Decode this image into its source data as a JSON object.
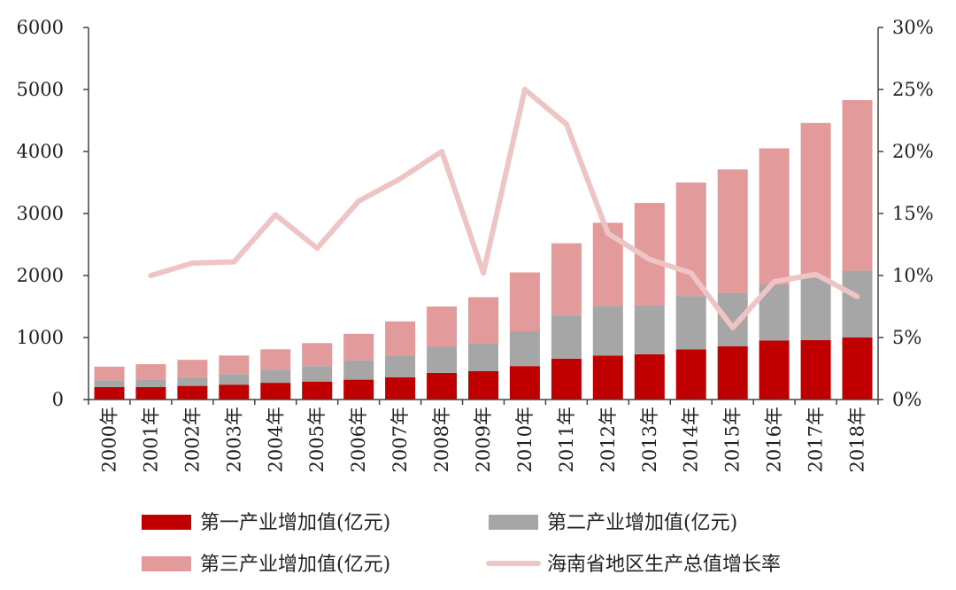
{
  "chart_data": {
    "type": "bar",
    "stacked": true,
    "categories": [
      "2000年",
      "2001年",
      "2002年",
      "2003年",
      "2004年",
      "2005年",
      "2006年",
      "2007年",
      "2008年",
      "2009年",
      "2010年",
      "2011年",
      "2012年",
      "2013年",
      "2014年",
      "2015年",
      "2016年",
      "2017年",
      "2018年"
    ],
    "series": [
      {
        "name": "第一产业增加值(亿元)",
        "kind": "bar",
        "color": "#c00000",
        "values": [
          200,
          200,
          220,
          240,
          270,
          290,
          320,
          360,
          430,
          460,
          540,
          660,
          710,
          730,
          810,
          860,
          950,
          960,
          1000
        ]
      },
      {
        "name": "第二产业增加值(亿元)",
        "kind": "bar",
        "color": "#a6a6a6",
        "values": [
          110,
          120,
          140,
          170,
          210,
          250,
          310,
          350,
          420,
          440,
          560,
          700,
          800,
          790,
          860,
          860,
          900,
          1000,
          1080
        ]
      },
      {
        "name": "第三产业增加值(亿元)",
        "kind": "bar",
        "color": "#e29a9a",
        "values": [
          220,
          250,
          280,
          300,
          330,
          370,
          430,
          550,
          650,
          750,
          950,
          1160,
          1340,
          1650,
          1830,
          1990,
          2200,
          2500,
          2750
        ]
      },
      {
        "name": "海南省地区生产总值增长率",
        "kind": "line",
        "axis": "right",
        "color": "#efc4c4",
        "values": [
          null,
          10.0,
          11.0,
          11.1,
          14.9,
          12.2,
          16.0,
          17.8,
          20.0,
          10.2,
          25.0,
          22.2,
          13.4,
          11.3,
          10.2,
          5.8,
          9.5,
          10.1,
          8.3
        ]
      }
    ],
    "left_axis": {
      "min": 0,
      "max": 6000,
      "ticks": [
        "0",
        "1000",
        "2000",
        "3000",
        "4000",
        "5000",
        "6000"
      ]
    },
    "right_axis": {
      "min": 0,
      "max": 30,
      "ticks": [
        "0%",
        "5%",
        "10%",
        "15%",
        "20%",
        "25%",
        "30%"
      ]
    },
    "title": "",
    "xlabel": "",
    "ylabel": "",
    "legend_position": "bottom"
  }
}
